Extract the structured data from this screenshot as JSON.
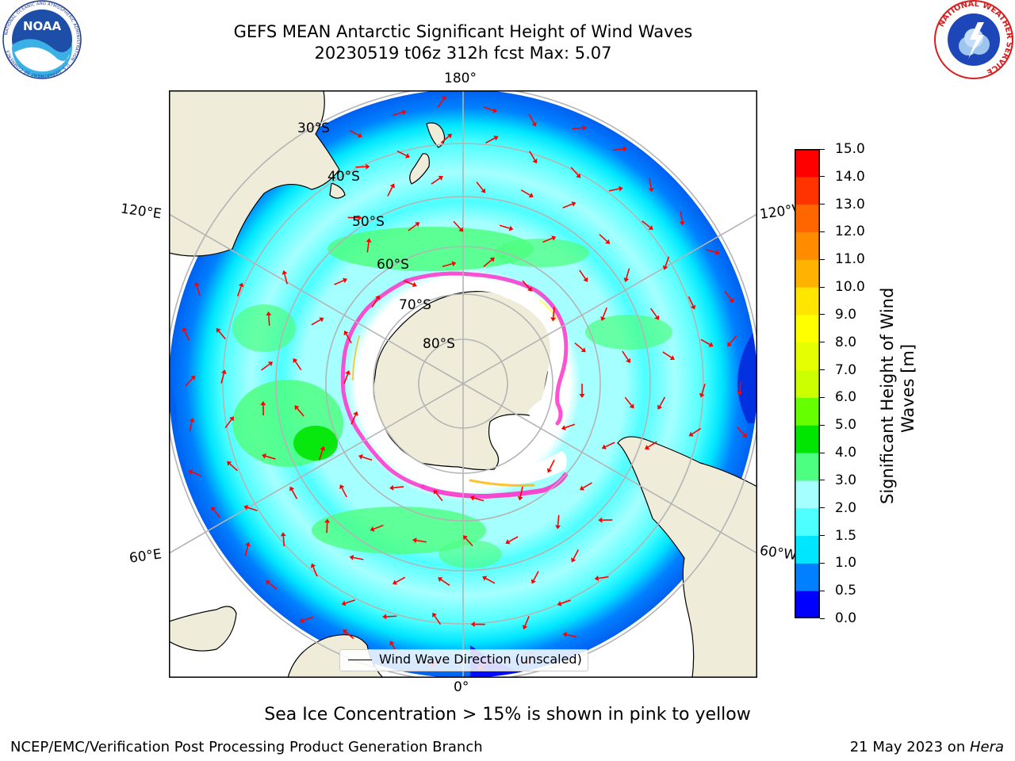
{
  "header": {
    "title_line1": "GEFS MEAN Antarctic Significant Height of Wind Waves",
    "title_line2": "20230519 t06z 312h fcst   Max: 5.07"
  },
  "logos": {
    "left": {
      "icon": "noaa-logo",
      "text": "NOAA",
      "ring_text": "NATIONAL OCEANIC AND ATMOSPHERIC ADMINISTRATION · U.S. DEPARTMENT OF COMMERCE"
    },
    "right": {
      "icon": "nws-logo",
      "ring_text": "NATIONAL WEATHER SERVICE"
    }
  },
  "map": {
    "projection": "south-polar-stereographic",
    "longitude_labels": {
      "top": "180°",
      "left_upper": "120°E",
      "right_upper": "120°W",
      "left_lower": "60°E",
      "right_lower": "60°W",
      "bottom": "0°"
    },
    "latitude_labels": [
      "30°S",
      "40°S",
      "50°S",
      "60°S",
      "70°S",
      "80°S"
    ],
    "colors": {
      "land": "#efedd9",
      "ice_free_zone": "#ffffff",
      "grid": "#b4b4b4",
      "arrow": "#ff0000",
      "sea_ice_edge": "#ff33cc"
    }
  },
  "legend": {
    "label": "Wind Wave Direction (unscaled)"
  },
  "colorbar": {
    "title": "Significant Height of Wind Waves [m]",
    "title_line1": "Significant Height of Wind",
    "title_line2": "Waves [m]",
    "ticks": [
      "15.0",
      "14.0",
      "13.0",
      "12.0",
      "11.0",
      "10.0",
      "9.0",
      "8.0",
      "7.0",
      "6.0",
      "5.0",
      "4.0",
      "3.0",
      "2.0",
      "1.5",
      "1.0",
      "0.5",
      "0.0"
    ],
    "colors": [
      "#0000ff",
      "#0080ff",
      "#00e6ff",
      "#4dffff",
      "#a6ffff",
      "#4dff80",
      "#00e600",
      "#66ff00",
      "#ccff00",
      "#e6ff00",
      "#ffff00",
      "#ffe600",
      "#ffb300",
      "#ff8c00",
      "#ff6600",
      "#ff3300",
      "#ff0000"
    ]
  },
  "caption": "Sea Ice Concentration > 15% is shown in pink to yellow",
  "footer": {
    "left": "NCEP/EMC/Verification Post Processing Product Generation Branch",
    "right_prefix": "21 May 2023 on ",
    "right_host": "Hera"
  }
}
